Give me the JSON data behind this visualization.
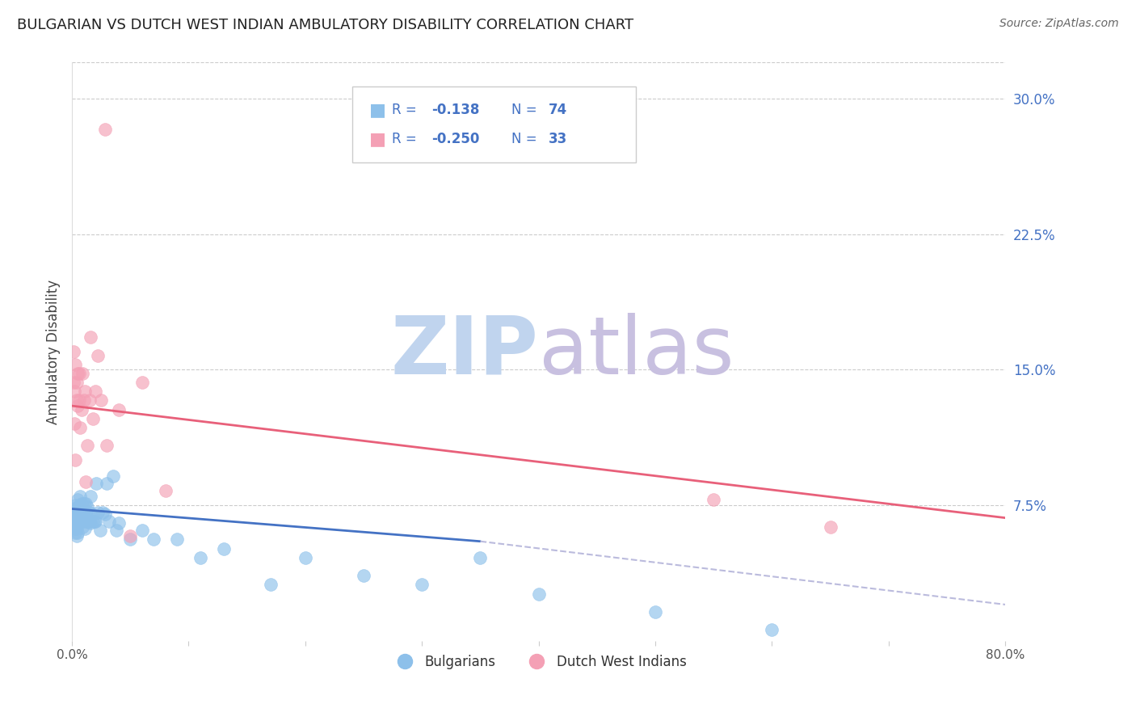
{
  "title": "BULGARIAN VS DUTCH WEST INDIAN AMBULATORY DISABILITY CORRELATION CHART",
  "source": "Source: ZipAtlas.com",
  "ylabel": "Ambulatory Disability",
  "xlim": [
    0.0,
    0.8
  ],
  "ylim": [
    0.0,
    0.32
  ],
  "xticks": [
    0.0,
    0.8
  ],
  "xticklabels": [
    "0.0%",
    "80.0%"
  ],
  "yticks_right": [
    0.075,
    0.15,
    0.225,
    0.3
  ],
  "ytick_labels_right": [
    "7.5%",
    "15.0%",
    "22.5%",
    "30.0%"
  ],
  "bulgarian_color": "#8DC0EA",
  "dutch_color": "#F4A0B5",
  "trend_blue_color": "#4472C4",
  "trend_pink_color": "#E8607A",
  "trend_dashed_color": "#BBBBDD",
  "watermark_zip_color": "#C0D4EE",
  "watermark_atlas_color": "#C8C0E0",
  "legend_color": "#4472C4",
  "bulgarians_x": [
    0.001,
    0.001,
    0.001,
    0.001,
    0.002,
    0.002,
    0.002,
    0.002,
    0.002,
    0.003,
    0.003,
    0.003,
    0.003,
    0.004,
    0.004,
    0.004,
    0.004,
    0.005,
    0.005,
    0.005,
    0.005,
    0.006,
    0.006,
    0.006,
    0.007,
    0.007,
    0.007,
    0.008,
    0.008,
    0.009,
    0.009,
    0.01,
    0.01,
    0.01,
    0.01,
    0.011,
    0.011,
    0.012,
    0.012,
    0.013,
    0.013,
    0.014,
    0.015,
    0.015,
    0.016,
    0.016,
    0.017,
    0.018,
    0.019,
    0.02,
    0.021,
    0.022,
    0.024,
    0.026,
    0.028,
    0.03,
    0.032,
    0.035,
    0.038,
    0.04,
    0.05,
    0.06,
    0.07,
    0.09,
    0.11,
    0.13,
    0.17,
    0.2,
    0.25,
    0.3,
    0.35,
    0.4,
    0.5,
    0.6
  ],
  "bulgarians_y": [
    0.068,
    0.072,
    0.065,
    0.07,
    0.062,
    0.066,
    0.07,
    0.073,
    0.065,
    0.06,
    0.065,
    0.07,
    0.075,
    0.058,
    0.062,
    0.068,
    0.073,
    0.06,
    0.066,
    0.072,
    0.078,
    0.065,
    0.07,
    0.075,
    0.068,
    0.073,
    0.08,
    0.07,
    0.076,
    0.063,
    0.068,
    0.066,
    0.071,
    0.076,
    0.068,
    0.062,
    0.068,
    0.071,
    0.076,
    0.066,
    0.074,
    0.066,
    0.066,
    0.071,
    0.065,
    0.08,
    0.07,
    0.066,
    0.066,
    0.066,
    0.087,
    0.071,
    0.061,
    0.071,
    0.07,
    0.087,
    0.066,
    0.091,
    0.061,
    0.065,
    0.056,
    0.061,
    0.056,
    0.056,
    0.046,
    0.051,
    0.031,
    0.046,
    0.036,
    0.031,
    0.046,
    0.026,
    0.016,
    0.006
  ],
  "dutch_x": [
    0.001,
    0.001,
    0.002,
    0.002,
    0.003,
    0.003,
    0.004,
    0.004,
    0.005,
    0.005,
    0.006,
    0.006,
    0.007,
    0.008,
    0.009,
    0.01,
    0.011,
    0.012,
    0.013,
    0.015,
    0.016,
    0.018,
    0.02,
    0.022,
    0.025,
    0.028,
    0.03,
    0.04,
    0.05,
    0.06,
    0.08,
    0.55,
    0.65
  ],
  "dutch_y": [
    0.143,
    0.16,
    0.12,
    0.138,
    0.1,
    0.153,
    0.133,
    0.143,
    0.13,
    0.148,
    0.133,
    0.148,
    0.118,
    0.128,
    0.148,
    0.133,
    0.138,
    0.088,
    0.108,
    0.133,
    0.168,
    0.123,
    0.138,
    0.158,
    0.133,
    0.283,
    0.108,
    0.128,
    0.058,
    0.143,
    0.083,
    0.078,
    0.063
  ],
  "bg_trend_x": [
    0.0,
    0.35
  ],
  "bg_trend_y": [
    0.073,
    0.055
  ],
  "dutch_trend_x": [
    0.0,
    0.8
  ],
  "dutch_trend_y": [
    0.13,
    0.068
  ],
  "dashed_trend_x": [
    0.35,
    0.8
  ],
  "dashed_trend_y": [
    0.055,
    0.02
  ]
}
